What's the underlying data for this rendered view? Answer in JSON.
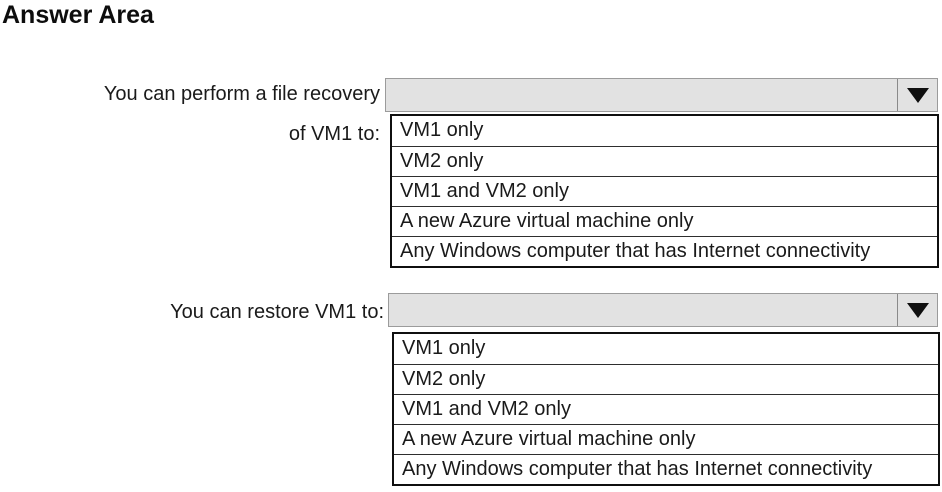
{
  "title": "Answer Area",
  "icons": {
    "dropdown_arrow": "black-down-triangle"
  },
  "colors": {
    "background": "#ffffff",
    "text": "#1a1a1a",
    "select_fill": "#e2e2e2",
    "select_border": "#9b9b9b",
    "arrow_color": "#0f0f0f",
    "list_border": "#0f0f0f",
    "row_divider": "#2e2e2e"
  },
  "questions": [
    {
      "label_line1": "You can perform a file recovery",
      "label_line2": "of VM1 to:",
      "selected_value": "",
      "options": [
        "VM1 only",
        "VM2 only",
        "VM1 and VM2 only",
        "A new Azure virtual machine only",
        "Any Windows computer that has Internet connectivity"
      ]
    },
    {
      "label": "You can restore VM1 to:",
      "selected_value": "",
      "options": [
        "VM1 only",
        "VM2 only",
        "VM1 and VM2 only",
        "A new Azure virtual machine only",
        "Any Windows computer that has Internet connectivity"
      ]
    }
  ]
}
